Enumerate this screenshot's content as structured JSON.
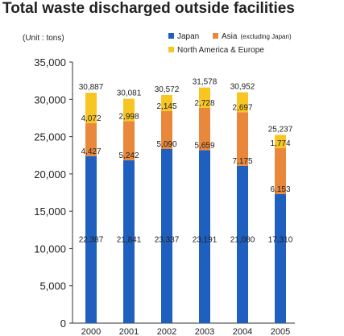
{
  "chart_data": {
    "type": "bar",
    "stacked": true,
    "title": "Total waste discharged outside facilities",
    "unit_label": "(Unit : tons)",
    "categories": [
      "2000",
      "2001",
      "2002",
      "2003",
      "2004",
      "2005"
    ],
    "series": [
      {
        "name": "Japan",
        "color": "#1f5fbf",
        "values": [
          22387,
          21841,
          23337,
          23191,
          21080,
          17310
        ]
      },
      {
        "name": "Asia",
        "name_note": "(excluding Japan)",
        "color": "#e9873a",
        "values": [
          4427,
          5242,
          5090,
          5659,
          7175,
          6153
        ]
      },
      {
        "name": "North America & Europe",
        "color": "#f7c623",
        "values": [
          4072,
          2998,
          2145,
          2728,
          2697,
          1774
        ]
      }
    ],
    "totals": [
      30887,
      30081,
      30572,
      31578,
      30952,
      25237
    ],
    "ylim": [
      0,
      35000
    ],
    "yticks": [
      0,
      5000,
      10000,
      15000,
      20000,
      25000,
      30000,
      35000
    ],
    "grid": false,
    "legend_position": "top-right"
  }
}
